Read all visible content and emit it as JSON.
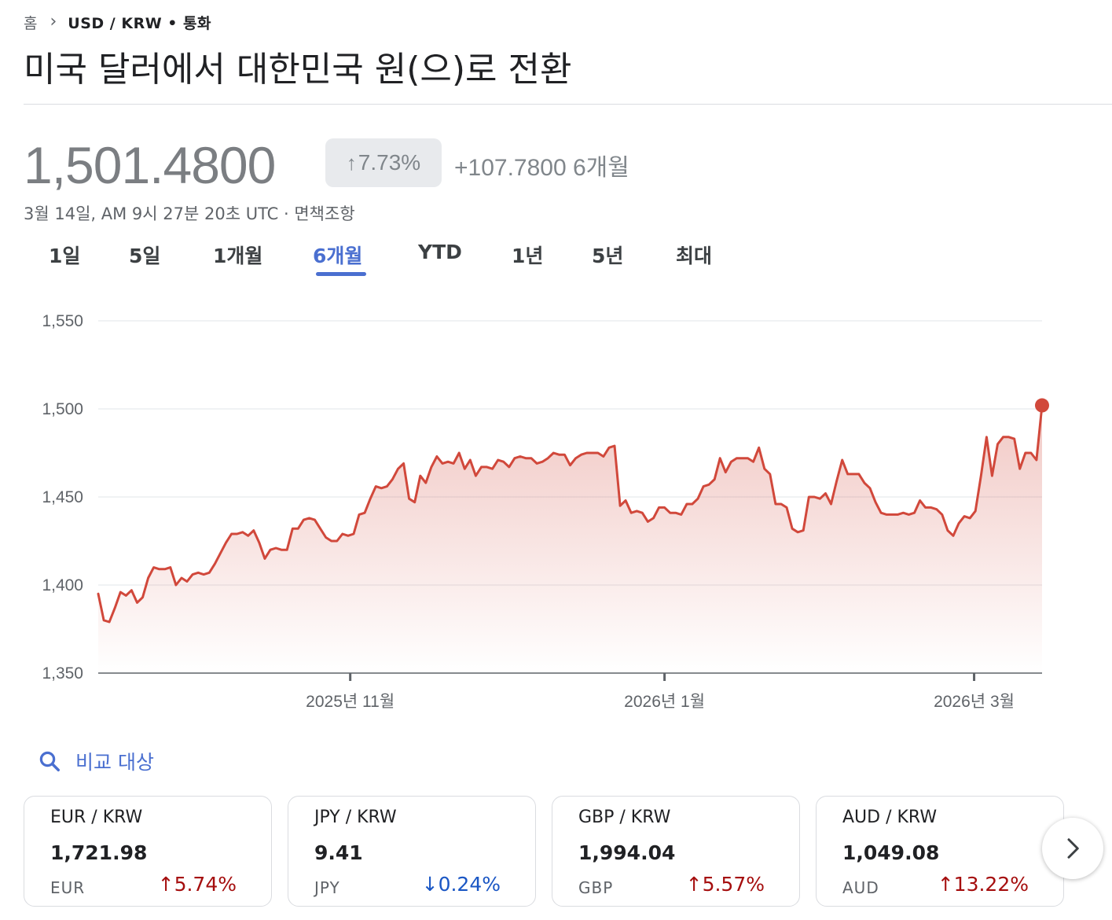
{
  "breadcrumb": {
    "home": "홈",
    "current": "USD / KRW • 통화"
  },
  "title": "미국 달러에서 대한민국 원(으)로 전환",
  "quote": {
    "price": "1,501.4800",
    "change_percent": "7.73%",
    "change_abs": "+107.7800 6개월",
    "timestamp": "3월 14일, AM 9시 27분 20초 UTC · 면책조항"
  },
  "tabs": [
    {
      "label": "1일",
      "active": false
    },
    {
      "label": "5일",
      "active": false
    },
    {
      "label": "1개월",
      "active": false
    },
    {
      "label": "6개월",
      "active": true
    },
    {
      "label": "YTD",
      "active": false
    },
    {
      "label": "1년",
      "active": false
    },
    {
      "label": "5년",
      "active": false
    },
    {
      "label": "최대",
      "active": false
    }
  ],
  "chart_data": {
    "type": "area",
    "ylim": [
      1350,
      1550
    ],
    "yticks": [
      1350,
      1400,
      1450,
      1500,
      1550
    ],
    "ytick_labels": [
      "1,350",
      "1,400",
      "1,450",
      "1,500",
      "1,550"
    ],
    "xticks": [
      {
        "label": "2025년 11월",
        "t": 0.267
      },
      {
        "label": "2026년 1월",
        "t": 0.6
      },
      {
        "label": "2026년 3월",
        "t": 0.928
      }
    ],
    "grid": true,
    "line_color": "#d1483b",
    "series": [
      {
        "values": [
          1395,
          1380,
          1379,
          1387,
          1396,
          1394,
          1397,
          1390,
          1393,
          1404,
          1410,
          1409,
          1409,
          1410,
          1400,
          1404,
          1402,
          1406,
          1407,
          1406,
          1407,
          1412,
          1418,
          1424,
          1429,
          1429,
          1430,
          1428,
          1431,
          1424,
          1415,
          1420,
          1421,
          1420,
          1420,
          1432,
          1432,
          1437,
          1438,
          1437,
          1432,
          1427,
          1425,
          1425,
          1429,
          1428,
          1429,
          1440,
          1441,
          1449,
          1456,
          1455,
          1456,
          1460,
          1466,
          1469,
          1449,
          1447,
          1462,
          1458,
          1467,
          1473,
          1469,
          1470,
          1469,
          1475,
          1466,
          1471,
          1462,
          1467,
          1467,
          1466,
          1471,
          1470,
          1467,
          1472,
          1473,
          1472,
          1472,
          1469,
          1470,
          1472,
          1475,
          1474,
          1474,
          1468,
          1472,
          1474,
          1475,
          1475,
          1475,
          1473,
          1478,
          1479,
          1445,
          1448,
          1441,
          1442,
          1441,
          1436,
          1438,
          1444,
          1444,
          1441,
          1441,
          1440,
          1446,
          1446,
          1449,
          1456,
          1457,
          1460,
          1472,
          1464,
          1470,
          1472,
          1472,
          1472,
          1470,
          1478,
          1466,
          1463,
          1446,
          1446,
          1444,
          1432,
          1430,
          1431,
          1450,
          1450,
          1449,
          1452,
          1446,
          1459,
          1471,
          1463,
          1463,
          1463,
          1458,
          1455,
          1447,
          1441,
          1440,
          1440,
          1440,
          1441,
          1440,
          1441,
          1448,
          1444,
          1444,
          1443,
          1440,
          1431,
          1428,
          1435,
          1439,
          1438,
          1442,
          1462,
          1484,
          1462,
          1480,
          1484,
          1484,
          1483,
          1466,
          1475,
          1475,
          1471,
          1502
        ]
      }
    ]
  },
  "compare": {
    "label": "비교 대상"
  },
  "cards": [
    {
      "pair": "EUR / KRW",
      "value": "1,721.98",
      "code": "EUR",
      "change": "5.74%",
      "direction": "up"
    },
    {
      "pair": "JPY / KRW",
      "value": "9.41",
      "code": "JPY",
      "change": "0.24%",
      "direction": "down"
    },
    {
      "pair": "GBP / KRW",
      "value": "1,994.04",
      "code": "GBP",
      "change": "5.57%",
      "direction": "up"
    },
    {
      "pair": "AUD / KRW",
      "value": "1,049.08",
      "code": "AUD",
      "change": "13.22%",
      "direction": "up"
    }
  ],
  "icons": {
    "compare": "search-icon",
    "next": "chevron-right-icon"
  }
}
